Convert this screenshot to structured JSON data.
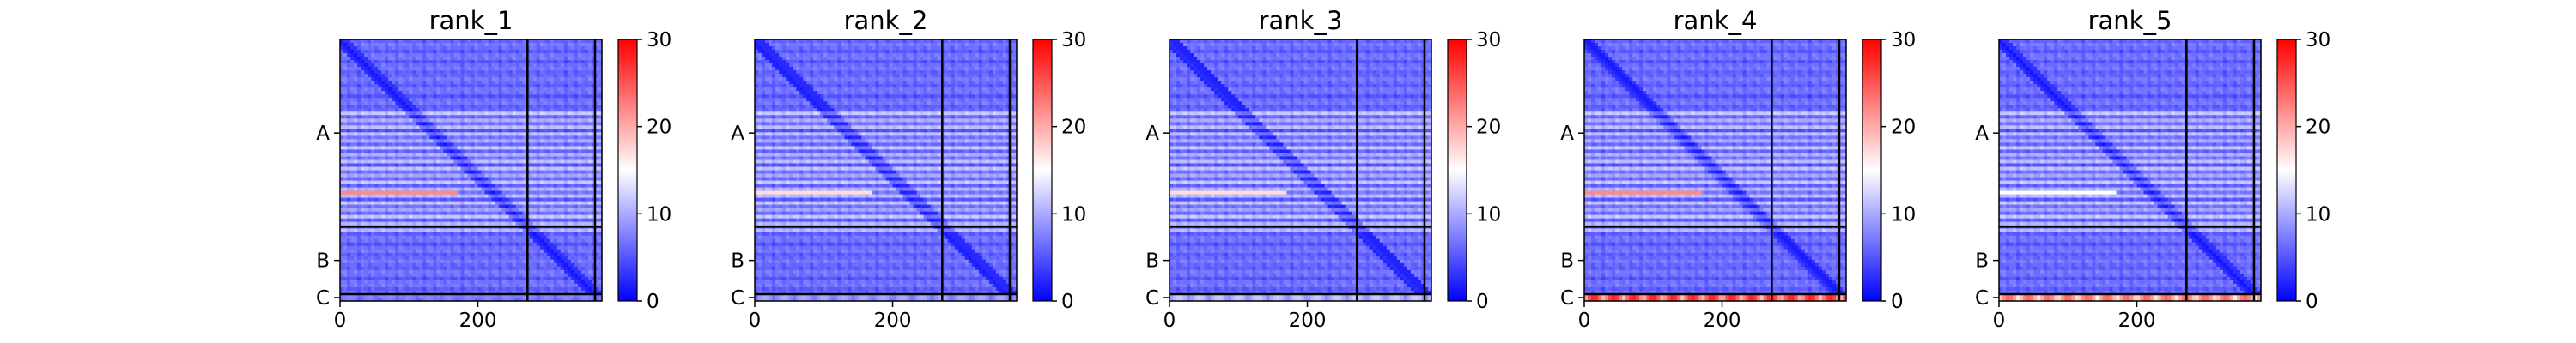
{
  "chart_data": {
    "type": "heatmap",
    "figure": "predicted aligned error matrices per model rank",
    "color_scale": {
      "min": 0,
      "max": 30,
      "ticks": [
        "0",
        "10",
        "20",
        "30"
      ],
      "colors": [
        "#0000ff",
        "#ffffff",
        "#ff0000"
      ]
    },
    "x_ticks": [
      "0",
      "200"
    ],
    "x_tick_values": [
      0,
      200
    ],
    "x_range": [
      0,
      380
    ],
    "chains": [
      {
        "label": "A",
        "start": 0,
        "end": 272
      },
      {
        "label": "B",
        "start": 272,
        "end": 370
      },
      {
        "label": "C",
        "start": 370,
        "end": 380
      }
    ],
    "panels": [
      {
        "title": "rank_1",
        "hot_rows": [
          {
            "y": 222,
            "peak": 22,
            "x_from": 0,
            "x_to": 170
          }
        ],
        "c_chain_heat": 8
      },
      {
        "title": "rank_2",
        "hot_rows": [
          {
            "y": 222,
            "peak": 17,
            "x_from": 0,
            "x_to": 170
          }
        ],
        "c_chain_heat": 10
      },
      {
        "title": "rank_3",
        "hot_rows": [
          {
            "y": 222,
            "peak": 17,
            "x_from": 0,
            "x_to": 170
          }
        ],
        "c_chain_heat": 12
      },
      {
        "title": "rank_4",
        "hot_rows": [
          {
            "y": 222,
            "peak": 22,
            "x_from": 0,
            "x_to": 170
          }
        ],
        "c_chain_heat": 28
      },
      {
        "title": "rank_5",
        "hot_rows": [
          {
            "y": 222,
            "peak": 15,
            "x_from": 0,
            "x_to": 170
          }
        ],
        "c_chain_heat": 24
      }
    ]
  }
}
